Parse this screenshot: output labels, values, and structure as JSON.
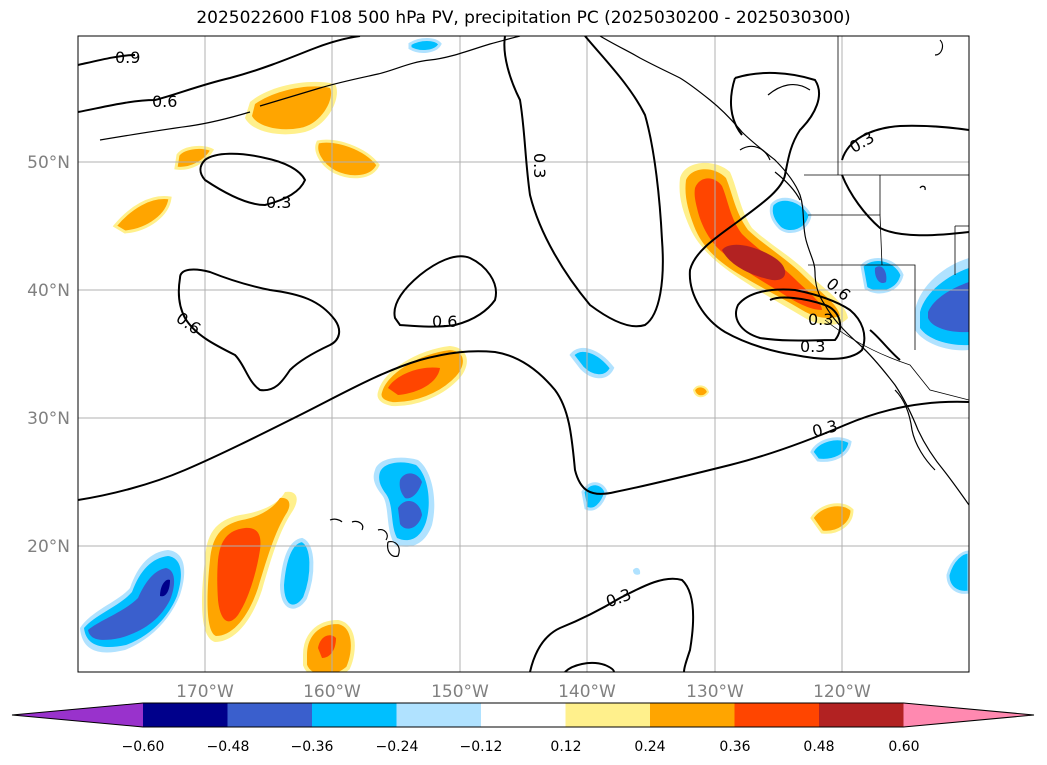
{
  "title": "2025022600 F108 500 hPa PV, precipitation PC (2025030200 - 2025030300)",
  "map": {
    "lat_labels": [
      "50°N",
      "40°N",
      "30°N",
      "20°N"
    ],
    "lon_labels": [
      "170°W",
      "160°W",
      "150°W",
      "140°W",
      "130°W",
      "120°W"
    ],
    "contour_labels": [
      "0.9",
      "0.6",
      "0.3",
      "0.3",
      "0.6",
      "0.6",
      "0.3",
      "0.3",
      "0.3",
      "0.3",
      "0.6",
      "0.3"
    ]
  },
  "colorbar": {
    "ticks": [
      "−0.60",
      "−0.48",
      "−0.36",
      "−0.24",
      "−0.12",
      "0.12",
      "0.24",
      "0.36",
      "0.48",
      "0.60"
    ],
    "colors": [
      "#9932cc",
      "#00008b",
      "#3a5fcd",
      "#00bfff",
      "#b0e2ff",
      "#ffffff",
      "#fff08c",
      "#ffa500",
      "#ff4500",
      "#b22222",
      "#ff89b0"
    ]
  }
}
